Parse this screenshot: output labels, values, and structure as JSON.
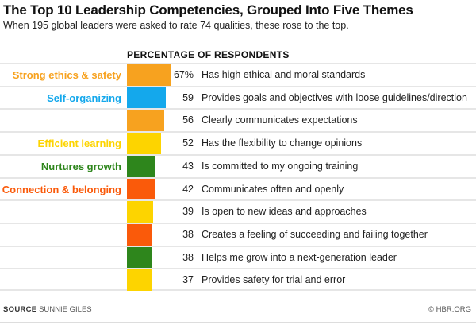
{
  "title": "The Top 10 Leadership Competencies, Grouped Into Five Themes",
  "subtitle": "When 195 global leaders were asked to rate 74 qualities, these rose to the top.",
  "source_label": "SOURCE",
  "source": "SUNNIE GILES",
  "credit": "© HBR.ORG",
  "chart_data": {
    "type": "bar",
    "orientation": "horizontal",
    "header": "PERCENTAGE OF RESPONDENTS",
    "themes": {
      "Strong ethics & safety": "#F7A21F",
      "Self-organizing": "#14A8EC",
      "Efficient learning": "#FDD400",
      "Nurtures growth": "#2E861C",
      "Connection & belonging": "#FA5A0A"
    },
    "rows": [
      {
        "theme_label": "Strong ethics & safety",
        "theme": "Strong ethics & safety",
        "value": 67,
        "value_label": "67%",
        "label": "Has high ethical and moral standards"
      },
      {
        "theme_label": "Self-organizing",
        "theme": "Self-organizing",
        "value": 59,
        "value_label": "59",
        "label": "Provides goals and objectives with loose guidelines/direction"
      },
      {
        "theme_label": "",
        "theme": "Strong ethics & safety",
        "value": 56,
        "value_label": "56",
        "label": "Clearly communicates expectations"
      },
      {
        "theme_label": "Efficient learning",
        "theme": "Efficient learning",
        "value": 52,
        "value_label": "52",
        "label": "Has the flexibility to change opinions"
      },
      {
        "theme_label": "Nurtures growth",
        "theme": "Nurtures growth",
        "value": 43,
        "value_label": "43",
        "label": "Is committed to my ongoing training"
      },
      {
        "theme_label": "Connection & belonging",
        "theme": "Connection & belonging",
        "value": 42,
        "value_label": "42",
        "label": "Communicates often and openly"
      },
      {
        "theme_label": "",
        "theme": "Efficient learning",
        "value": 39,
        "value_label": "39",
        "label": "Is open to new ideas and approaches"
      },
      {
        "theme_label": "",
        "theme": "Connection & belonging",
        "value": 38,
        "value_label": "38",
        "label": "Creates a feeling of succeeding and failing together"
      },
      {
        "theme_label": "",
        "theme": "Nurtures growth",
        "value": 38,
        "value_label": "38",
        "label": "Helps me grow into a next-generation leader"
      },
      {
        "theme_label": "",
        "theme": "Efficient learning",
        "value": 37,
        "value_label": "37",
        "label": "Provides safety for trial and error"
      }
    ]
  }
}
